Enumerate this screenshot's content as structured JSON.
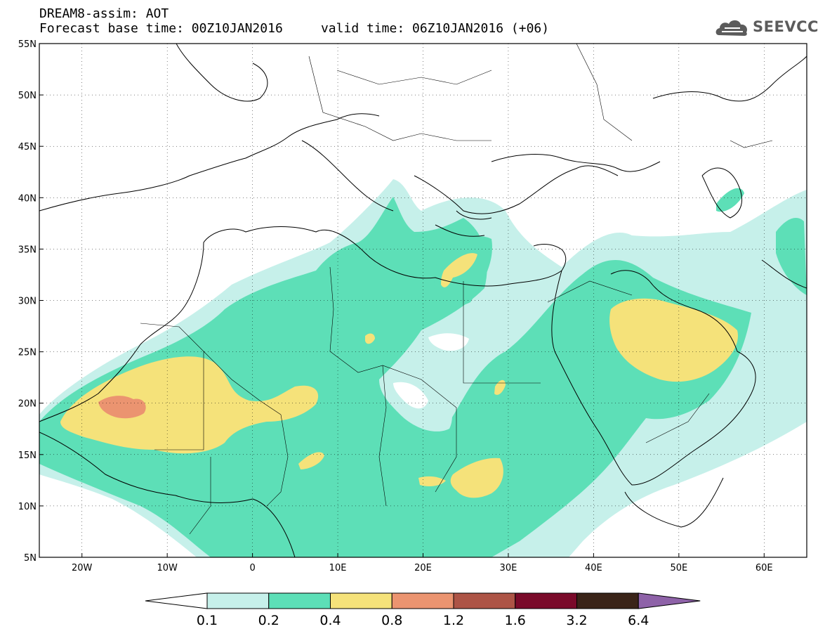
{
  "header": {
    "line1": "DREAM8-assim: AOT",
    "line2": "Forecast base time: 00Z10JAN2016     valid time: 06Z10JAN2016 (+06)"
  },
  "logo": {
    "text": "SEEVCCC",
    "icon": "cloud-icon"
  },
  "map": {
    "lon_range": [
      -25,
      65
    ],
    "lat_range": [
      5,
      55
    ],
    "lat_ticks": [
      "55N",
      "50N",
      "45N",
      "40N",
      "35N",
      "30N",
      "25N",
      "20N",
      "15N",
      "10N",
      "5N"
    ],
    "lon_ticks": [
      "20W",
      "10W",
      "0",
      "10E",
      "20E",
      "30E",
      "40E",
      "50E",
      "60E"
    ],
    "grid": true
  },
  "colorbar": {
    "labels": [
      "0.1",
      "0.2",
      "0.4",
      "0.8",
      "1.2",
      "1.6",
      "3.2",
      "6.4"
    ],
    "colors": [
      "#ffffff",
      "#c6f0ea",
      "#5ddfb7",
      "#f5e27a",
      "#eb9470",
      "#ad5446",
      "#7a0a2a",
      "#3a2418",
      "#8e62a8"
    ]
  }
}
